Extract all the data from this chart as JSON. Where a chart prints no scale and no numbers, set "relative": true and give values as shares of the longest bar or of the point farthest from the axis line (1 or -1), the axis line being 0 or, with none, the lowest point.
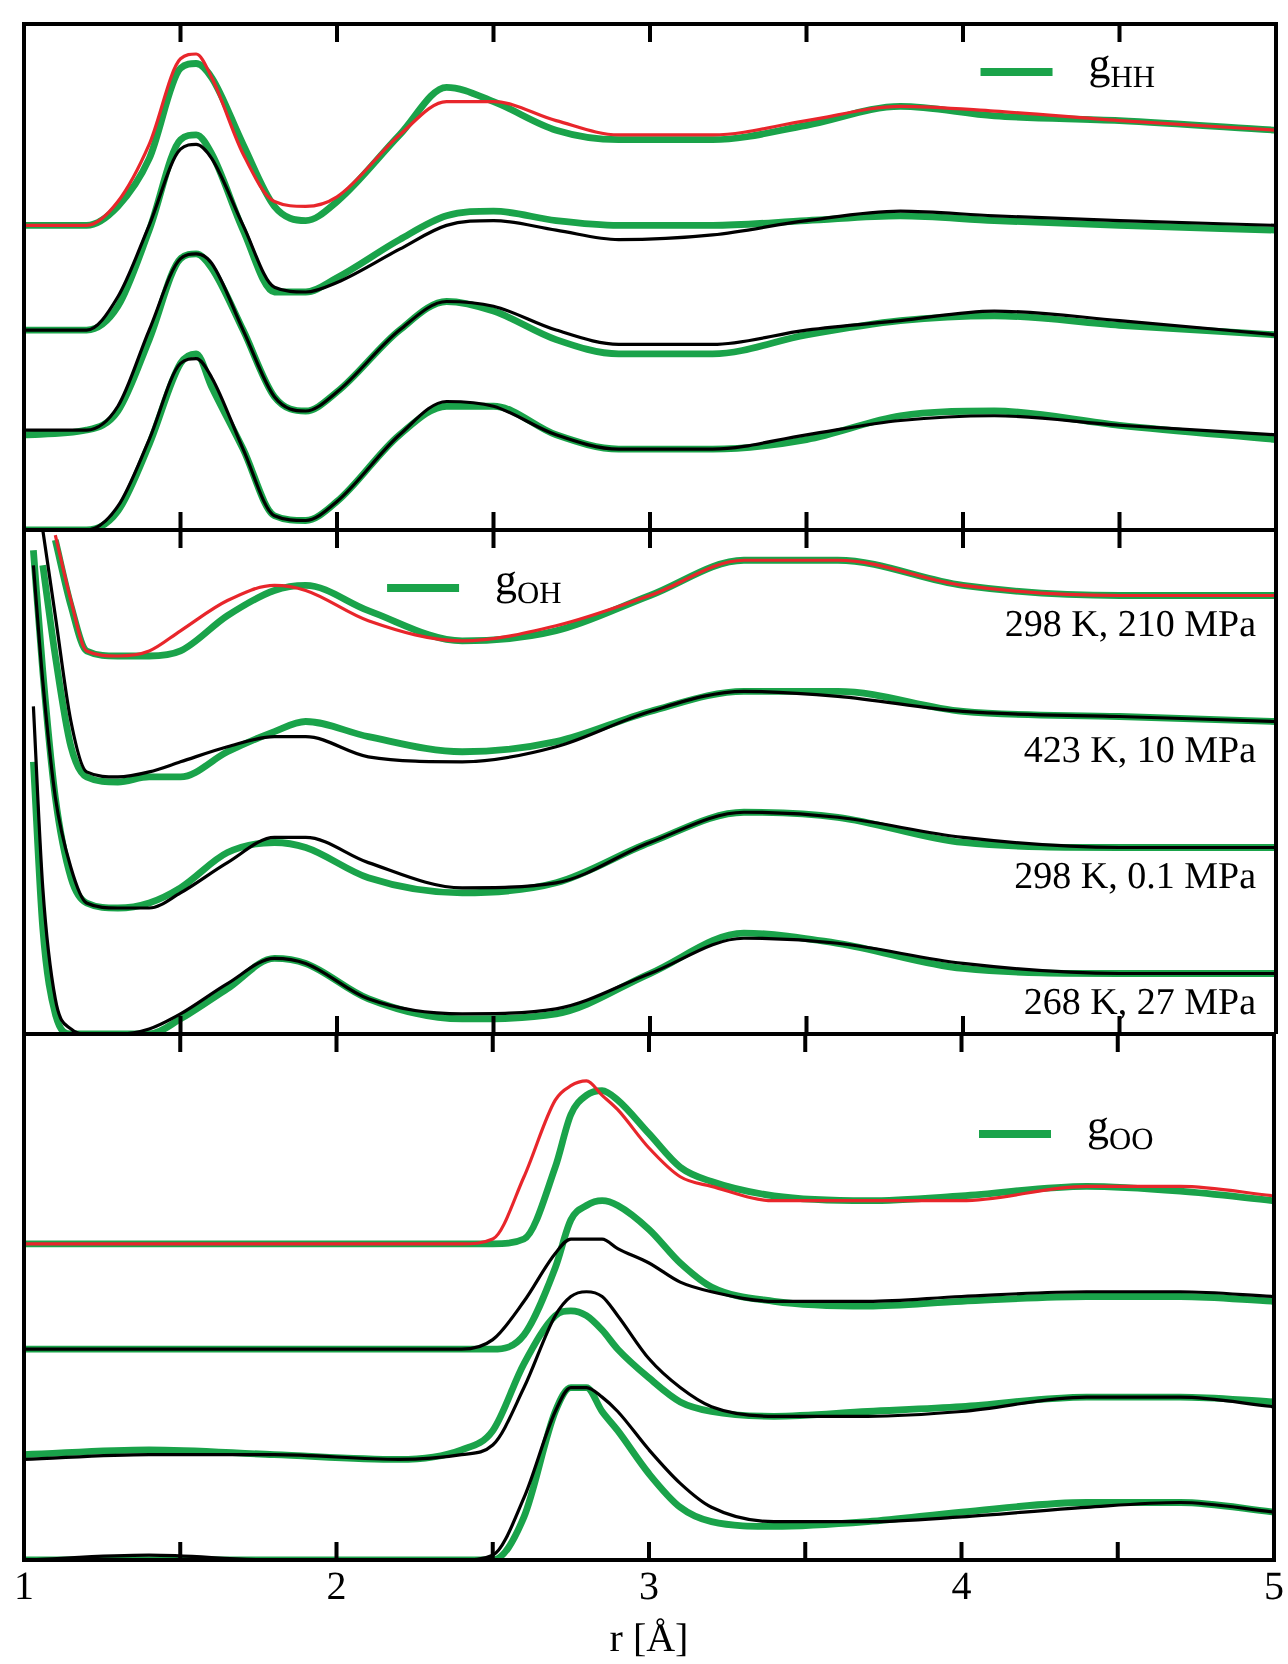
{
  "chart_data": [
    {
      "type": "line",
      "relative": true,
      "marker": "none",
      "legend": "top right",
      "tick_labels": false,
      "xlim": [
        1,
        5
      ],
      "xticks": [
        1,
        {
          "value": 1.5,
          "label": null
        },
        2,
        {
          "value": 2.5,
          "label": null
        },
        3,
        {
          "value": 3.5,
          "label": null
        },
        4,
        {
          "value": 4.5,
          "label": null
        },
        5
      ],
      "x": [
        1.0,
        1.2,
        1.3,
        1.4,
        1.5,
        1.55,
        1.6,
        1.7,
        1.8,
        1.9,
        2.0,
        2.2,
        2.35,
        2.5,
        2.7,
        2.9,
        3.2,
        3.5,
        3.8,
        4.1,
        4.5,
        5.0
      ],
      "series": [
        {
          "name": "g$_{HH}$",
          "color": "#1aa34a",
          "values": [
            0.64,
            0.64,
            0.68,
            0.78,
            0.97,
            0.98,
            0.95,
            0.81,
            0.68,
            0.65,
            0.69,
            0.83,
            0.93,
            0.9,
            0.84,
            0.82,
            0.82,
            0.85,
            0.89,
            0.87,
            0.86,
            0.84
          ]
        },
        {
          "color": "#e8262b",
          "values": [
            0.64,
            0.64,
            0.69,
            0.81,
            0.99,
            1.0,
            0.95,
            0.79,
            0.69,
            0.68,
            0.7,
            0.83,
            0.9,
            0.9,
            0.86,
            0.83,
            0.83,
            0.86,
            0.89,
            0.88,
            0.86,
            0.84
          ]
        },
        {
          "color": "#1aa34a",
          "values": [
            0.42,
            0.42,
            0.47,
            0.63,
            0.82,
            0.83,
            0.79,
            0.63,
            0.5,
            0.5,
            0.53,
            0.61,
            0.66,
            0.67,
            0.65,
            0.64,
            0.64,
            0.65,
            0.66,
            0.65,
            0.64,
            0.63
          ]
        },
        {
          "color": "#000000",
          "values": [
            0.42,
            0.42,
            0.49,
            0.64,
            0.8,
            0.81,
            0.78,
            0.64,
            0.51,
            0.5,
            0.52,
            0.59,
            0.64,
            0.65,
            0.63,
            0.61,
            0.62,
            0.65,
            0.67,
            0.66,
            0.65,
            0.64
          ]
        },
        {
          "color": "#1aa34a",
          "values": [
            0.2,
            0.21,
            0.25,
            0.4,
            0.57,
            0.58,
            0.55,
            0.42,
            0.28,
            0.25,
            0.29,
            0.42,
            0.48,
            0.46,
            0.4,
            0.37,
            0.37,
            0.41,
            0.44,
            0.45,
            0.43,
            0.41
          ]
        },
        {
          "color": "#000000",
          "values": [
            0.21,
            0.21,
            0.26,
            0.42,
            0.57,
            0.58,
            0.56,
            0.42,
            0.28,
            0.25,
            0.29,
            0.42,
            0.48,
            0.47,
            0.42,
            0.39,
            0.39,
            0.42,
            0.44,
            0.46,
            0.44,
            0.41
          ]
        },
        {
          "color": "#1aa34a",
          "values": [
            0,
            0,
            0.04,
            0.18,
            0.35,
            0.37,
            0.3,
            0.17,
            0.03,
            0.02,
            0.06,
            0.2,
            0.26,
            0.26,
            0.2,
            0.17,
            0.17,
            0.19,
            0.24,
            0.25,
            0.22,
            0.19
          ]
        },
        {
          "color": "#000000",
          "values": [
            0,
            0,
            0.05,
            0.19,
            0.35,
            0.36,
            0.32,
            0.17,
            0.03,
            0.02,
            0.06,
            0.2,
            0.27,
            0.26,
            0.2,
            0.17,
            0.17,
            0.2,
            0.23,
            0.24,
            0.22,
            0.2
          ]
        }
      ]
    },
    {
      "type": "line",
      "relative": true,
      "marker": "none",
      "legend": "top left",
      "tick_labels": false,
      "xlim": [
        1,
        5
      ],
      "xticks": [
        1,
        {
          "value": 1.5,
          "label": null
        },
        2,
        {
          "value": 2.5,
          "label": null
        },
        3,
        {
          "value": 3.5,
          "label": null
        },
        4,
        {
          "value": 4.5,
          "label": null
        },
        5
      ],
      "x": [
        1.03,
        1.06,
        1.1,
        1.15,
        1.2,
        1.3,
        1.4,
        1.5,
        1.65,
        1.8,
        1.9,
        2.1,
        2.4,
        2.7,
        3.0,
        3.3,
        3.6,
        4.0,
        4.5,
        5.0
      ],
      "annotations": [
        "298 K, 210 MPa",
        "423 K, 10 MPa",
        "298 K, 0.1 MPa",
        "268 K, 27 MPa"
      ],
      "series": [
        {
          "name": "g$_{OH}$",
          "color": "#1aa34a",
          "values": [
            null,
            null,
            0.98,
            0.85,
            0.76,
            0.75,
            0.75,
            0.76,
            0.83,
            0.88,
            0.89,
            0.84,
            0.78,
            0.8,
            0.87,
            0.94,
            0.94,
            0.89,
            0.87,
            0.87
          ]
        },
        {
          "color": "#e8262b",
          "values": [
            null,
            null,
            0.99,
            0.86,
            0.76,
            0.75,
            0.76,
            0.8,
            0.86,
            0.89,
            0.88,
            0.82,
            0.78,
            0.81,
            0.87,
            0.94,
            0.94,
            0.89,
            0.87,
            0.87
          ]
        },
        {
          "color": "#1aa34a",
          "values": [
            null,
            0.93,
            0.75,
            0.57,
            0.51,
            0.5,
            0.51,
            0.51,
            0.56,
            0.6,
            0.62,
            0.59,
            0.56,
            0.58,
            0.64,
            0.68,
            0.68,
            0.64,
            0.63,
            0.62
          ]
        },
        {
          "color": "#000000",
          "values": [
            null,
            1.0,
            0.83,
            0.62,
            0.52,
            0.51,
            0.52,
            0.54,
            0.57,
            0.59,
            0.59,
            0.55,
            0.54,
            0.57,
            0.64,
            0.68,
            0.67,
            0.64,
            0.63,
            0.62
          ]
        },
        {
          "color": "#1aa34a",
          "values": [
            0.96,
            0.72,
            0.47,
            0.31,
            0.26,
            0.25,
            0.26,
            0.29,
            0.36,
            0.38,
            0.37,
            0.31,
            0.28,
            0.3,
            0.38,
            0.44,
            0.43,
            0.38,
            0.37,
            0.37
          ]
        },
        {
          "color": "#000000",
          "values": [
            0.93,
            0.7,
            0.47,
            0.33,
            0.26,
            0.25,
            0.25,
            0.28,
            0.34,
            0.39,
            0.39,
            0.34,
            0.29,
            0.3,
            0.38,
            0.44,
            0.43,
            0.39,
            0.37,
            0.37
          ]
        },
        {
          "color": "#1aa34a",
          "values": [
            0.54,
            0.21,
            0.04,
            0,
            0,
            0,
            0,
            0.03,
            0.09,
            0.15,
            0.14,
            0.07,
            0.03,
            0.04,
            0.12,
            0.2,
            0.18,
            0.13,
            0.12,
            0.12
          ]
        },
        {
          "color": "#000000",
          "values": [
            0.65,
            0.29,
            0.07,
            0.01,
            0,
            0,
            0.01,
            0.04,
            0.1,
            0.15,
            0.14,
            0.07,
            0.04,
            0.05,
            0.12,
            0.19,
            0.18,
            0.14,
            0.12,
            0.12
          ]
        }
      ]
    },
    {
      "type": "line",
      "relative": true,
      "marker": "none",
      "legend": "top right",
      "tick_labels": "x",
      "xlabel": "r [Å]",
      "xlim": [
        1,
        5
      ],
      "xticks": [
        1,
        {
          "value": 1.5,
          "label": null
        },
        2,
        {
          "value": 2.5,
          "label": null
        },
        3,
        {
          "value": 3.5,
          "label": null
        },
        4,
        {
          "value": 4.5,
          "label": null
        },
        5
      ],
      "x": [
        1.0,
        1.4,
        1.8,
        2.2,
        2.4,
        2.5,
        2.6,
        2.7,
        2.75,
        2.8,
        2.85,
        2.9,
        3.0,
        3.1,
        3.2,
        3.4,
        3.7,
        4.0,
        4.4,
        4.7,
        5.0
      ],
      "series": [
        {
          "name": "g$_{OO}$",
          "color": "#1aa34a",
          "values": [
            0.66,
            0.66,
            0.66,
            0.66,
            0.66,
            0.66,
            0.67,
            0.82,
            0.93,
            0.97,
            0.98,
            0.96,
            0.89,
            0.82,
            0.79,
            0.76,
            0.75,
            0.76,
            0.78,
            0.77,
            0.75
          ]
        },
        {
          "color": "#e8262b",
          "values": [
            0.66,
            0.66,
            0.66,
            0.66,
            0.66,
            0.67,
            0.8,
            0.96,
            0.99,
            1.0,
            0.97,
            0.94,
            0.86,
            0.8,
            0.78,
            0.75,
            0.75,
            0.75,
            0.78,
            0.78,
            0.76
          ]
        },
        {
          "color": "#1aa34a",
          "values": [
            0.44,
            0.44,
            0.44,
            0.44,
            0.44,
            0.44,
            0.47,
            0.61,
            0.71,
            0.74,
            0.75,
            0.74,
            0.69,
            0.62,
            0.57,
            0.54,
            0.53,
            0.54,
            0.55,
            0.55,
            0.54
          ]
        },
        {
          "color": "#000000",
          "values": [
            0.44,
            0.44,
            0.44,
            0.44,
            0.44,
            0.46,
            0.54,
            0.64,
            0.67,
            0.67,
            0.67,
            0.65,
            0.62,
            0.58,
            0.56,
            0.54,
            0.54,
            0.55,
            0.56,
            0.56,
            0.55
          ]
        },
        {
          "color": "#1aa34a",
          "values": [
            0.22,
            0.23,
            0.22,
            0.21,
            0.23,
            0.27,
            0.41,
            0.51,
            0.52,
            0.51,
            0.48,
            0.44,
            0.38,
            0.33,
            0.31,
            0.3,
            0.31,
            0.32,
            0.34,
            0.34,
            0.33
          ]
        },
        {
          "color": "#000000",
          "values": [
            0.21,
            0.22,
            0.22,
            0.21,
            0.22,
            0.24,
            0.36,
            0.51,
            0.55,
            0.56,
            0.55,
            0.51,
            0.42,
            0.36,
            0.32,
            0.3,
            0.3,
            0.31,
            0.34,
            0.34,
            0.32
          ]
        },
        {
          "color": "#1aa34a",
          "values": [
            0,
            0,
            0,
            0,
            0,
            0,
            0.09,
            0.31,
            0.36,
            0.36,
            0.31,
            0.27,
            0.18,
            0.11,
            0.08,
            0.07,
            0.08,
            0.1,
            0.12,
            0.12,
            0.1
          ]
        },
        {
          "color": "#000000",
          "values": [
            0,
            0.01,
            0,
            0,
            0,
            0.01,
            0.13,
            0.31,
            0.36,
            0.36,
            0.34,
            0.31,
            0.23,
            0.16,
            0.11,
            0.08,
            0.08,
            0.09,
            0.11,
            0.12,
            0.1
          ]
        }
      ]
    }
  ]
}
